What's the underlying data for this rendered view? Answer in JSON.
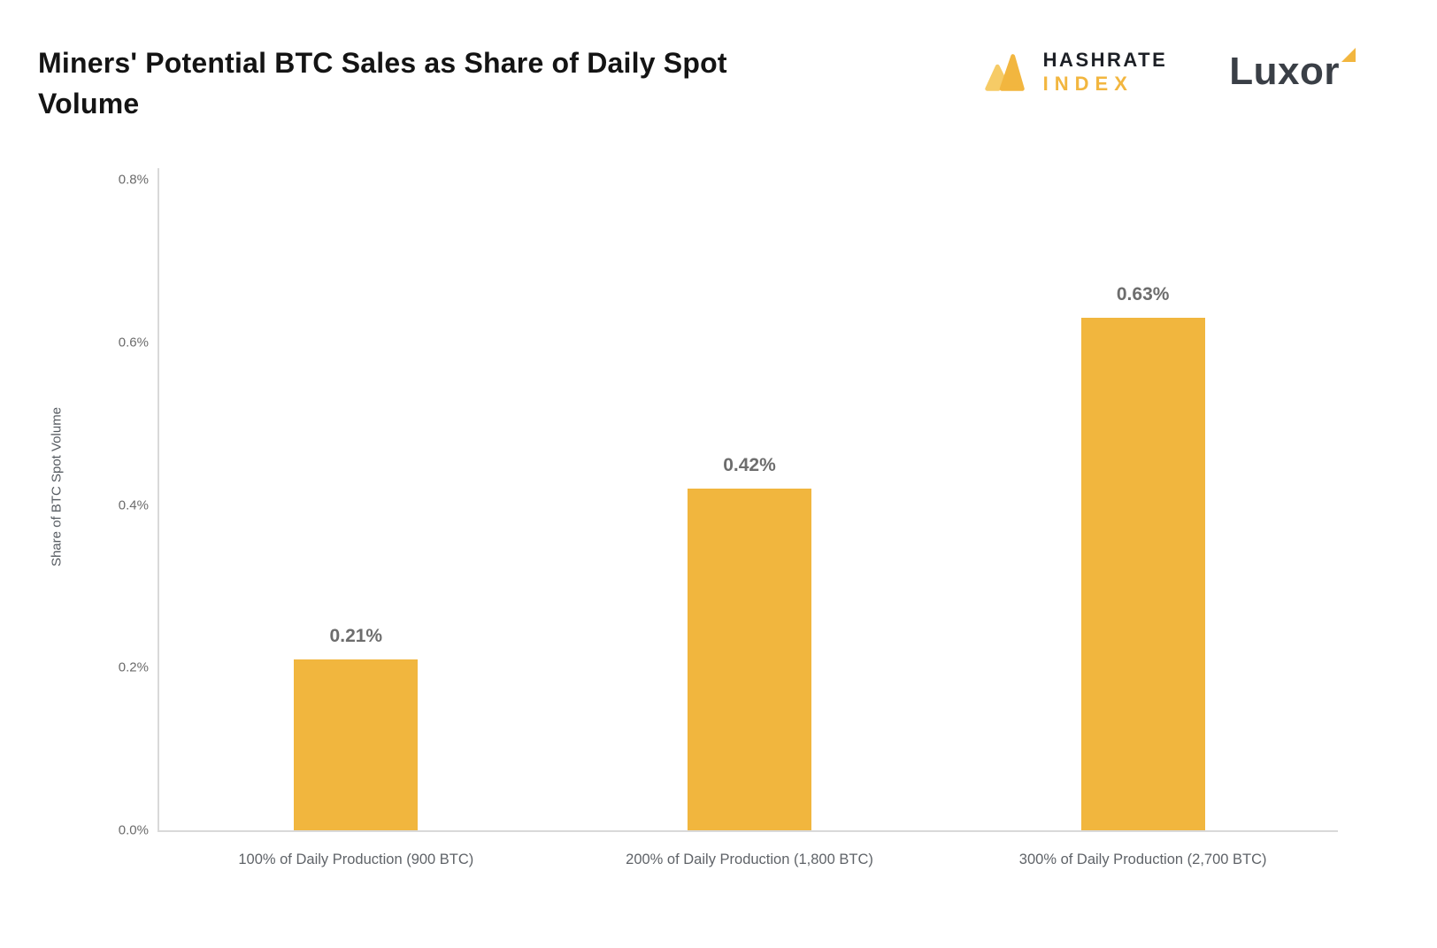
{
  "header": {
    "hashrate_logo": {
      "line1": "HASHRATE",
      "line2": "INDEX"
    },
    "luxor_logo": {
      "text": "Luxor"
    }
  },
  "colors": {
    "bar": "#F1B63E",
    "accent": "#F2B63F",
    "title_text": "#141414",
    "label_text": "#6d6d6d",
    "axis_line": "#d9d9d9"
  },
  "chart_data": {
    "type": "bar",
    "title": "Miners' Potential BTC Sales as Share of Daily Spot Volume",
    "categories": [
      "100% of Daily Production (900 BTC)",
      "200% of Daily Production (1,800 BTC)",
      "300% of Daily Production (2,700 BTC)"
    ],
    "values": [
      0.21,
      0.42,
      0.63
    ],
    "value_labels": [
      "0.21%",
      "0.42%",
      "0.63%"
    ],
    "xlabel": "",
    "ylabel": "Share of BTC Spot Volume",
    "ylim": [
      0,
      0.8
    ],
    "yticks": [
      0.0,
      0.2,
      0.4,
      0.6,
      0.8
    ],
    "ytick_labels": [
      "0.0%",
      "0.2%",
      "0.4%",
      "0.6%",
      "0.8%"
    ],
    "grid": false,
    "legend": "none",
    "bar_color": "#F1B63E"
  }
}
